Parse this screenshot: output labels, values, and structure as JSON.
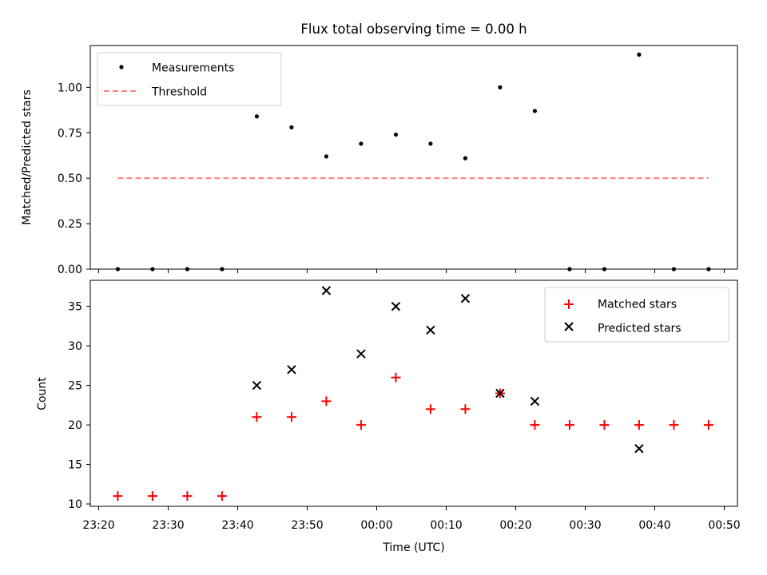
{
  "chart_data": [
    {
      "type": "scatter",
      "title": "Flux total observing time = 0.00 h",
      "xlabel": "",
      "ylabel": "Matched/Predicted stars",
      "ylim": [
        0,
        1.23
      ],
      "yticks": [
        "0.00",
        "0.25",
        "0.50",
        "0.75",
        "1.00"
      ],
      "legend_position": "top-left",
      "series": [
        {
          "name": "Measurements",
          "marker": "dot",
          "color": "#000000",
          "x": [
            "23:22:45",
            "23:27:45",
            "23:32:45",
            "23:37:45",
            "23:42:45",
            "23:47:45",
            "23:52:45",
            "23:57:45",
            "00:02:45",
            "00:07:45",
            "00:12:45",
            "00:17:45",
            "00:22:45",
            "00:27:45",
            "00:32:45",
            "00:37:45",
            "00:42:45",
            "00:47:45"
          ],
          "y": [
            0,
            0,
            0,
            0,
            0.84,
            0.78,
            0.62,
            0.69,
            0.74,
            0.69,
            0.61,
            1.0,
            0.87,
            0,
            0,
            1.18,
            0,
            0
          ]
        },
        {
          "name": "Threshold",
          "marker": "dashed-line",
          "color": "#ff7f7f",
          "x": [
            "23:22:45",
            "00:47:45"
          ],
          "y": [
            0.5,
            0.5
          ]
        }
      ]
    },
    {
      "type": "scatter",
      "xlabel": "Time (UTC)",
      "ylabel": "Count",
      "ylim": [
        9.7,
        38.3
      ],
      "yticks": [
        "10",
        "15",
        "20",
        "25",
        "30",
        "35"
      ],
      "xticks": [
        "23:20",
        "23:30",
        "23:40",
        "23:50",
        "00:00",
        "00:10",
        "00:20",
        "00:30",
        "00:40",
        "00:50"
      ],
      "legend_position": "top-right",
      "series": [
        {
          "name": "Matched stars",
          "marker": "plus",
          "color": "#ff0000",
          "x": [
            "23:22:45",
            "23:27:45",
            "23:32:45",
            "23:37:45",
            "23:42:45",
            "23:47:45",
            "23:52:45",
            "23:57:45",
            "00:02:45",
            "00:07:45",
            "00:12:45",
            "00:17:45",
            "00:22:45",
            "00:27:45",
            "00:32:45",
            "00:37:45",
            "00:42:45",
            "00:47:45"
          ],
          "y": [
            11,
            11,
            11,
            11,
            21,
            21,
            23,
            20,
            26,
            22,
            22,
            24,
            20,
            20,
            20,
            20,
            20,
            20
          ]
        },
        {
          "name": "Predicted stars",
          "marker": "x",
          "color": "#000000",
          "x": [
            "23:42:45",
            "23:47:45",
            "23:52:45",
            "23:57:45",
            "00:02:45",
            "00:07:45",
            "00:12:45",
            "00:17:45",
            "00:22:45",
            "00:37:45"
          ],
          "y": [
            25,
            27,
            37,
            29,
            35,
            32,
            36,
            24,
            23,
            17
          ]
        }
      ]
    }
  ]
}
